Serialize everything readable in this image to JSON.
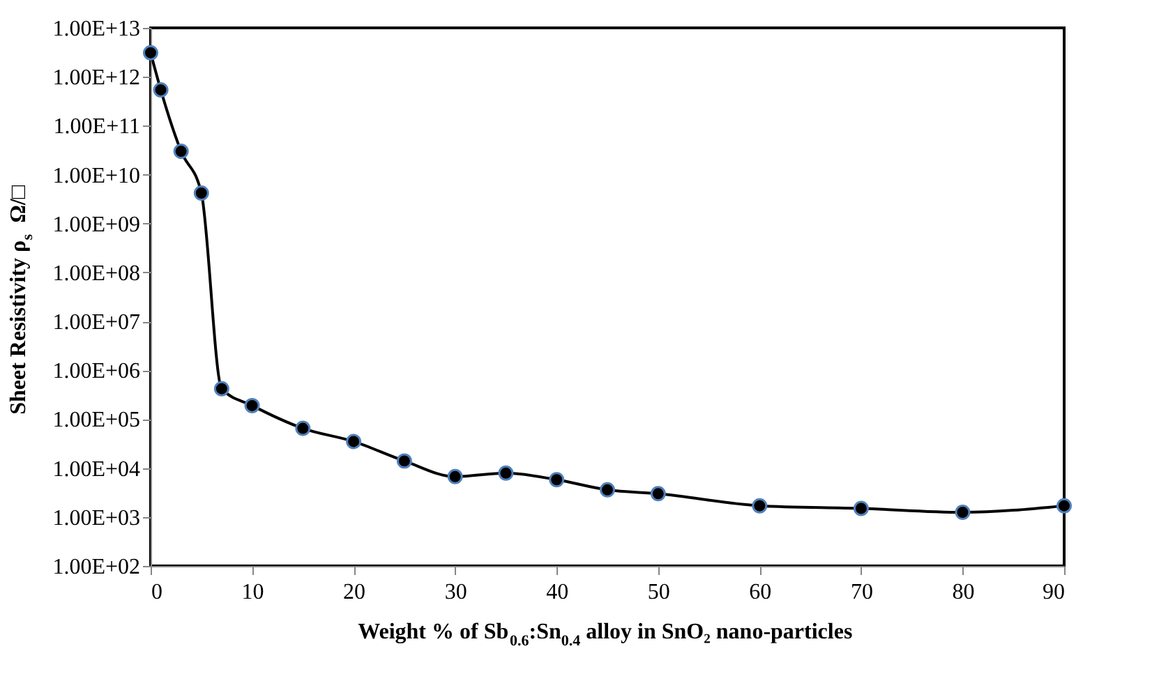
{
  "chart_data": {
    "type": "line",
    "xlabel": "Weight % of Sb$_{0.6}$:Sn$_{0.4}$ alloy in SnO₂ nano-particles",
    "ylabel": "Sheet Resistivity ρ$_{s}$   Ω/□",
    "x": [
      0,
      1,
      3,
      5,
      7,
      10,
      15,
      20,
      25,
      30,
      35,
      40,
      45,
      50,
      60,
      70,
      80,
      90
    ],
    "series": [
      {
        "color": "#000000",
        "values": [
          3100000000000.0,
          540000000000.0,
          30000000000.0,
          4200000000.0,
          420000.0,
          190000.0,
          65000.0,
          35000.0,
          14000.0,
          6700.0,
          7900.0,
          5800.0,
          3600.0,
          3000.0,
          1700.0,
          1500.0,
          1250.0,
          1700.0
        ]
      }
    ],
    "log": "y",
    "marker": "circle",
    "line_style": "solid",
    "grid": false,
    "xlim": [
      0,
      90
    ],
    "xticks": [
      0,
      10,
      20,
      30,
      40,
      50,
      60,
      70,
      80,
      90
    ],
    "ylim": [
      100.0,
      10000000000000.0
    ],
    "yticks": [
      {
        "value": 100.0,
        "label": "1.00E+02"
      },
      {
        "value": 1000.0,
        "label": "1.00E+03"
      },
      {
        "value": 10000.0,
        "label": "1.00E+04"
      },
      {
        "value": 100000.0,
        "label": "1.00E+05"
      },
      {
        "value": 1000000.0,
        "label": "1.00E+06"
      },
      {
        "value": 10000000.0,
        "label": "1.00E+07"
      },
      {
        "value": 100000000.0,
        "label": "1.00E+08"
      },
      {
        "value": 1000000000.0,
        "label": "1.00E+09"
      },
      {
        "value": 10000000000.0,
        "label": "1.00E+10"
      },
      {
        "value": 100000000000.0,
        "label": "1.00E+11"
      },
      {
        "value": 1000000000000.0,
        "label": "1.00E+12"
      },
      {
        "value": 10000000000000.0,
        "label": "1.00E+13"
      }
    ]
  }
}
